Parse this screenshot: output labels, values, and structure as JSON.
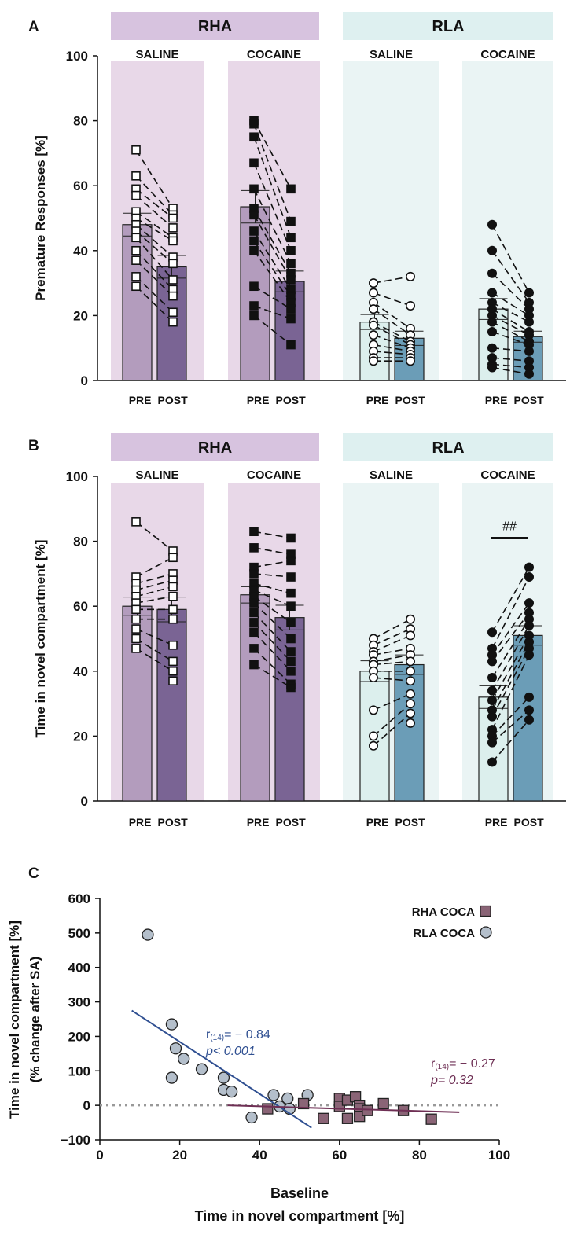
{
  "colors": {
    "rha_bg": "#e8d8e8",
    "rha_header": "#d7c3df",
    "rla_bg": "#eaf4f4",
    "rla_header": "#def0f0",
    "rha_pre": "#b39cbd",
    "rha_post": "#7a6494",
    "rla_pre": "#dcefed",
    "rla_post": "#6b9db7",
    "rha_coca_marker": "#8a6476",
    "rla_coca_marker": "#b4bfcb",
    "rla_fit": "#2f4f91",
    "rha_fit": "#6e2f54",
    "annot_rla": "#2f4f91",
    "annot_rha": "#6e2f54"
  },
  "chart_data": [
    {
      "type": "bar",
      "panel_label": "A",
      "ylabel": "Premature Responses [%]",
      "ylim": [
        0,
        100
      ],
      "yticks": [
        "0",
        "20",
        "40",
        "60",
        "80",
        "100"
      ],
      "strains": [
        "RHA",
        "RLA"
      ],
      "timepoint_labels": [
        "PRE",
        "POST"
      ],
      "annotation": "",
      "groups": [
        {
          "strain": "RHA",
          "name": "SALINE",
          "marker": "open-square",
          "pre_mean": 48,
          "post_mean": 35,
          "pre_sem": 3.5,
          "post_sem": 3.5,
          "pre": [
            71,
            63,
            59,
            57,
            52,
            50,
            48,
            46,
            44,
            40,
            37,
            32,
            29
          ],
          "post": [
            53,
            51,
            50,
            47,
            44,
            43,
            38,
            36,
            31,
            28,
            26,
            21,
            18
          ]
        },
        {
          "strain": "RHA",
          "name": "COCAINE",
          "marker": "filled-square",
          "pre_mean": 53.5,
          "post_mean": 30.5,
          "pre_sem": 5,
          "post_sem": 3.2,
          "pre": [
            80,
            79,
            75,
            67,
            59,
            53,
            51,
            46,
            43,
            40,
            29,
            23,
            20
          ],
          "post": [
            59,
            49,
            44,
            40,
            36,
            33,
            31,
            28,
            26,
            24,
            22,
            19,
            11
          ]
        },
        {
          "strain": "RLA",
          "name": "SALINE",
          "marker": "open-circle",
          "pre_mean": 18,
          "post_mean": 13,
          "pre_sem": 2.3,
          "post_sem": 2.2,
          "pre": [
            30,
            27,
            24,
            22,
            18,
            17,
            14,
            11,
            9,
            7,
            6
          ],
          "post": [
            32,
            23,
            16,
            14,
            12,
            11,
            10,
            9,
            8,
            7,
            6
          ]
        },
        {
          "strain": "RLA",
          "name": "COCAINE",
          "marker": "filled-circle",
          "pre_mean": 22,
          "post_mean": 13.5,
          "pre_sem": 3.2,
          "post_sem": 1.7,
          "pre": [
            48,
            40,
            33,
            27,
            24,
            22,
            20,
            18,
            15,
            10,
            7,
            5,
            4
          ],
          "post": [
            27,
            24,
            22,
            20,
            18,
            15,
            14,
            12,
            11,
            9,
            6,
            4,
            2
          ]
        }
      ]
    },
    {
      "type": "bar",
      "panel_label": "B",
      "ylabel": "Time in novel compartment [%]",
      "ylim": [
        0,
        100
      ],
      "yticks": [
        "0",
        "20",
        "40",
        "60",
        "80",
        "100"
      ],
      "strains": [
        "RHA",
        "RLA"
      ],
      "timepoint_labels": [
        "PRE",
        "POST"
      ],
      "annotation": "##",
      "groups": [
        {
          "strain": "RHA",
          "name": "SALINE",
          "marker": "open-square",
          "pre_mean": 60,
          "post_mean": 59,
          "pre_sem": 2.8,
          "post_sem": 3.8,
          "pre": [
            86,
            69,
            67,
            65,
            63,
            61,
            59,
            56,
            53,
            50,
            47
          ],
          "post": [
            77,
            75,
            70,
            68,
            66,
            63,
            59,
            56,
            48,
            43,
            40,
            37
          ]
        },
        {
          "strain": "RHA",
          "name": "COCAINE",
          "marker": "filled-square",
          "pre_mean": 63.5,
          "post_mean": 56.5,
          "pre_sem": 2.5,
          "post_sem": 3.8,
          "pre": [
            83,
            78,
            72,
            70,
            67,
            65,
            63,
            61,
            58,
            55,
            52,
            47,
            42
          ],
          "post": [
            81,
            76,
            74,
            69,
            64,
            60,
            55,
            50,
            46,
            43,
            40,
            36,
            35
          ]
        },
        {
          "strain": "RLA",
          "name": "SALINE",
          "marker": "open-circle",
          "pre_mean": 40,
          "post_mean": 42,
          "pre_sem": 3.2,
          "post_sem": 3.0,
          "pre": [
            50,
            48,
            46,
            45,
            43,
            42,
            40,
            38,
            28,
            20,
            17
          ],
          "post": [
            56,
            53,
            51,
            47,
            45,
            43,
            40,
            37,
            33,
            30,
            27,
            24
          ]
        },
        {
          "strain": "RLA",
          "name": "COCAINE",
          "marker": "filled-circle",
          "pre_mean": 32,
          "post_mean": 51,
          "pre_sem": 3.5,
          "post_sem": 3.0,
          "pre": [
            52,
            47,
            45,
            43,
            38,
            34,
            31,
            28,
            26,
            22,
            20,
            18,
            12
          ],
          "post": [
            72,
            69,
            61,
            58,
            56,
            54,
            51,
            49,
            47,
            45,
            32,
            28,
            25
          ]
        }
      ]
    },
    {
      "type": "scatter",
      "panel_label": "C",
      "ylabel_lines": [
        "Time in novel compartment [%]",
        "(% change after SA)"
      ],
      "xlabel_lines": [
        "Baseline",
        "Time in novel compartment [%]"
      ],
      "xlim": [
        0,
        100
      ],
      "ylim": [
        -100,
        600
      ],
      "xticks": [
        "0",
        "20",
        "40",
        "60",
        "80",
        "100"
      ],
      "yticks": [
        "−100",
        "0",
        "100",
        "200",
        "300",
        "400",
        "500",
        "600"
      ],
      "reference_y": 0,
      "series": [
        {
          "name": "RLA COCA",
          "marker": "circle",
          "points": [
            [
              12,
              495
            ],
            [
              18,
              235
            ],
            [
              18,
              80
            ],
            [
              19,
              165
            ],
            [
              21,
              135
            ],
            [
              25.5,
              105
            ],
            [
              31,
              80
            ],
            [
              31,
              45
            ],
            [
              33,
              40
            ],
            [
              38,
              -35
            ],
            [
              43.5,
              30
            ],
            [
              45,
              -3
            ],
            [
              47,
              20
            ],
            [
              47.5,
              -10
            ],
            [
              52,
              30
            ]
          ],
          "fit": {
            "x1": 8,
            "y1": 275,
            "x2": 53,
            "y2": -65
          },
          "stat_r": "r",
          "stat_sub": "(14)",
          "stat_val": "= − 0.84",
          "stat_p": "p< 0.001"
        },
        {
          "name": "RHA COCA",
          "marker": "square",
          "points": [
            [
              42,
              -10
            ],
            [
              51,
              5
            ],
            [
              56,
              -38
            ],
            [
              60,
              20
            ],
            [
              60,
              -3
            ],
            [
              62,
              -38
            ],
            [
              62,
              15
            ],
            [
              64,
              25
            ],
            [
              65,
              0
            ],
            [
              65,
              -10
            ],
            [
              65,
              -32
            ],
            [
              67,
              -15
            ],
            [
              71,
              5
            ],
            [
              76,
              -15
            ],
            [
              83,
              -40
            ]
          ],
          "fit": {
            "x1": 32,
            "y1": 0,
            "x2": 90,
            "y2": -20
          },
          "stat_r": "r",
          "stat_sub": "(14)",
          "stat_val": "= − 0.27",
          "stat_p": "p= 0.32"
        }
      ]
    }
  ]
}
